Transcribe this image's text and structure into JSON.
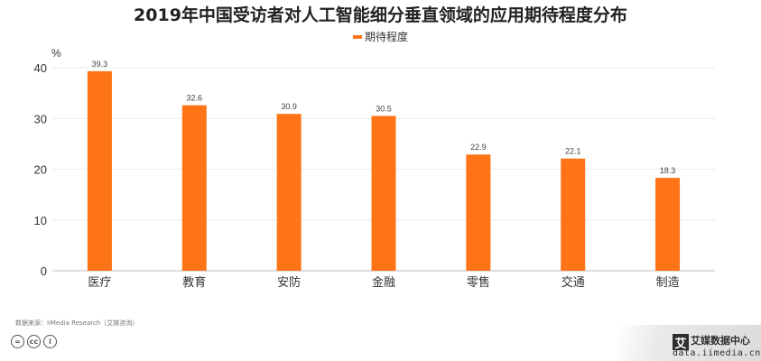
{
  "chart_data": {
    "type": "bar",
    "title": "2019年中国受访者对人工智能细分垂直领域的应用期待程度分布",
    "ylabel": "%",
    "categories": [
      "医疗",
      "教育",
      "安防",
      "金融",
      "零售",
      "交通",
      "制造"
    ],
    "series": [
      {
        "name": "期待程度",
        "values": [
          39.3,
          32.6,
          30.9,
          30.5,
          22.9,
          22.1,
          18.3
        ],
        "color": "#ff7417"
      }
    ],
    "ylim": [
      0,
      40
    ],
    "yticks": [
      0,
      10,
      20,
      30,
      40
    ],
    "grid": true,
    "legend_position": "top-center"
  },
  "footer": {
    "source": "数据来源：iiMedia Research（艾媒咨询）",
    "cc_icons": [
      "=",
      "cc",
      "i"
    ]
  },
  "brand": {
    "logo_char": "艾",
    "name": "艾媒数据中心",
    "url": "data.iimedia.cn"
  }
}
